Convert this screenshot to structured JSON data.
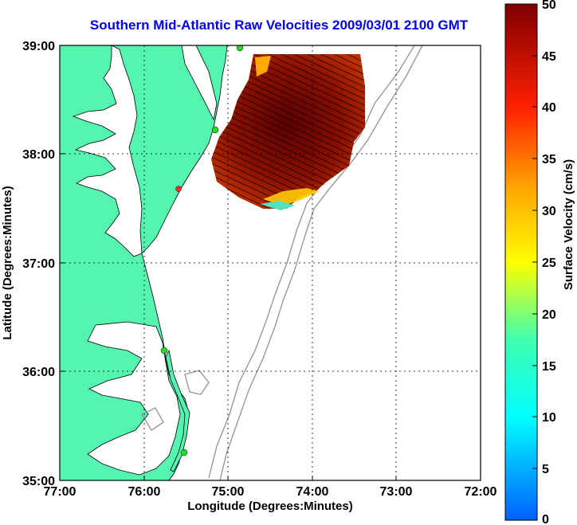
{
  "title": "Southern Mid-Atlantic Raw Velocities 2009/03/01 2100 GMT",
  "xaxis": {
    "label": "Longitude (Degrees:Minutes)",
    "ticks": [
      "77:00",
      "76:00",
      "75:00",
      "74:00",
      "73:00",
      "72:00"
    ]
  },
  "yaxis": {
    "label": "Latitude (Degrees:Minutes)",
    "ticks": [
      "39:00",
      "38:00",
      "37:00",
      "36:00",
      "35:00"
    ]
  },
  "colorbar": {
    "label": "Surface Velocity (cm/s)",
    "ticks": [
      "50",
      "45",
      "40",
      "35",
      "30",
      "25",
      "20",
      "15",
      "10",
      "5",
      "0"
    ]
  },
  "colors": {
    "title": "#0000ee",
    "land": "#55f5b0",
    "ocean": "#ffffff",
    "bathymetry": "#999999",
    "site_marker": "#22dd22",
    "site_marker_alt": "#ee3333",
    "grid": "#000000"
  }
}
